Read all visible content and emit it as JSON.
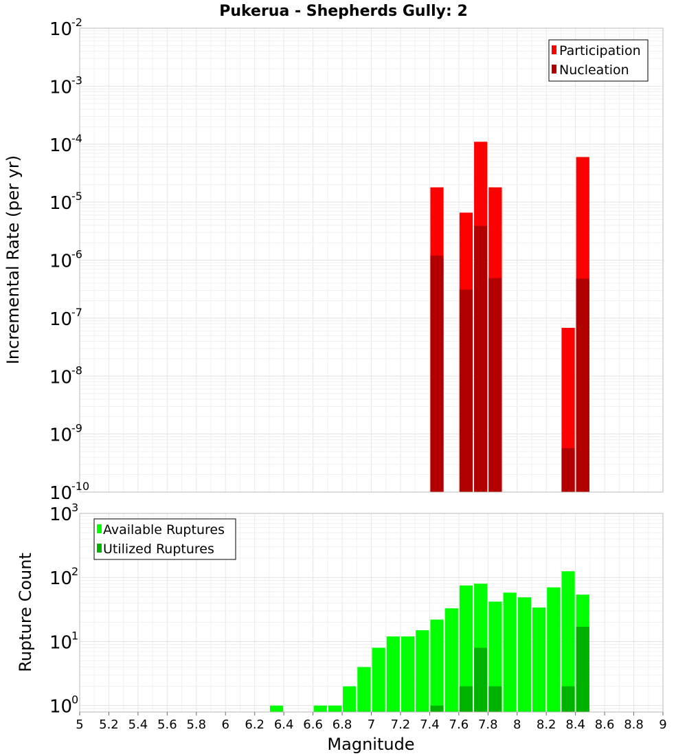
{
  "chart_data": {
    "title": "Pukerua - Shepherds Gully: 2",
    "xlabel": "Magnitude",
    "xlim": [
      5,
      9
    ],
    "xticks": [
      "5",
      "5.2",
      "5.4",
      "5.6",
      "5.8",
      "6",
      "6.2",
      "6.4",
      "6.6",
      "6.8",
      "7",
      "7.2",
      "7.4",
      "7.6",
      "7.8",
      "8",
      "8.2",
      "8.4",
      "8.6",
      "8.8",
      "9"
    ],
    "bin_width": 0.1,
    "panels": [
      {
        "type": "bar",
        "yscale": "log",
        "ylabel": "Incremental Rate (per yr)",
        "ylim_exp": [
          -10,
          -2
        ],
        "yticks": [
          {
            "base": "10",
            "exp": "-2"
          },
          {
            "base": "10",
            "exp": "-3"
          },
          {
            "base": "10",
            "exp": "-4"
          },
          {
            "base": "10",
            "exp": "-5"
          },
          {
            "base": "10",
            "exp": "-6"
          },
          {
            "base": "10",
            "exp": "-7"
          },
          {
            "base": "10",
            "exp": "-8"
          },
          {
            "base": "10",
            "exp": "-9"
          },
          {
            "base": "10",
            "exp": "-10"
          }
        ],
        "legend_position": "top-right",
        "series": [
          {
            "name": "Participation",
            "color": "#ff0000",
            "x": [
              7.45,
              7.65,
              7.75,
              7.85,
              8.35,
              8.45
            ],
            "values": [
              1.8e-05,
              6.6e-06,
              0.00011,
              1.8e-05,
              6.8e-08,
              6e-05
            ]
          },
          {
            "name": "Nucleation",
            "color": "#b20000",
            "x": [
              7.45,
              7.65,
              7.75,
              7.85,
              8.35,
              8.45
            ],
            "values": [
              1.2e-06,
              3.1e-07,
              3.9e-06,
              4.9e-07,
              5.7e-10,
              4.8e-07
            ]
          }
        ]
      },
      {
        "type": "bar",
        "yscale": "log",
        "ylabel": "Rupture Count",
        "ylim_exp": [
          -0.1,
          3
        ],
        "yticks": [
          {
            "base": "10",
            "exp": "3"
          },
          {
            "base": "10",
            "exp": "2"
          },
          {
            "base": "10",
            "exp": "1"
          },
          {
            "base": "10",
            "exp": "0"
          }
        ],
        "legend_position": "top-left",
        "series": [
          {
            "name": "Available Ruptures",
            "color": "#00ff00",
            "x": [
              6.35,
              6.65,
              6.75,
              6.85,
              6.95,
              7.05,
              7.15,
              7.25,
              7.35,
              7.45,
              7.55,
              7.65,
              7.75,
              7.85,
              7.95,
              8.05,
              8.15,
              8.25,
              8.35,
              8.45
            ],
            "values": [
              1,
              1,
              1,
              2,
              4,
              8,
              12,
              12,
              15,
              22,
              33,
              75,
              80,
              42,
              58,
              49,
              34,
              70,
              125,
              54
            ]
          },
          {
            "name": "Utilized Ruptures",
            "color": "#00b200",
            "x": [
              7.45,
              7.65,
              7.75,
              7.85,
              8.35,
              8.45
            ],
            "values": [
              1,
              2,
              8,
              2,
              2,
              17
            ]
          }
        ]
      }
    ]
  }
}
